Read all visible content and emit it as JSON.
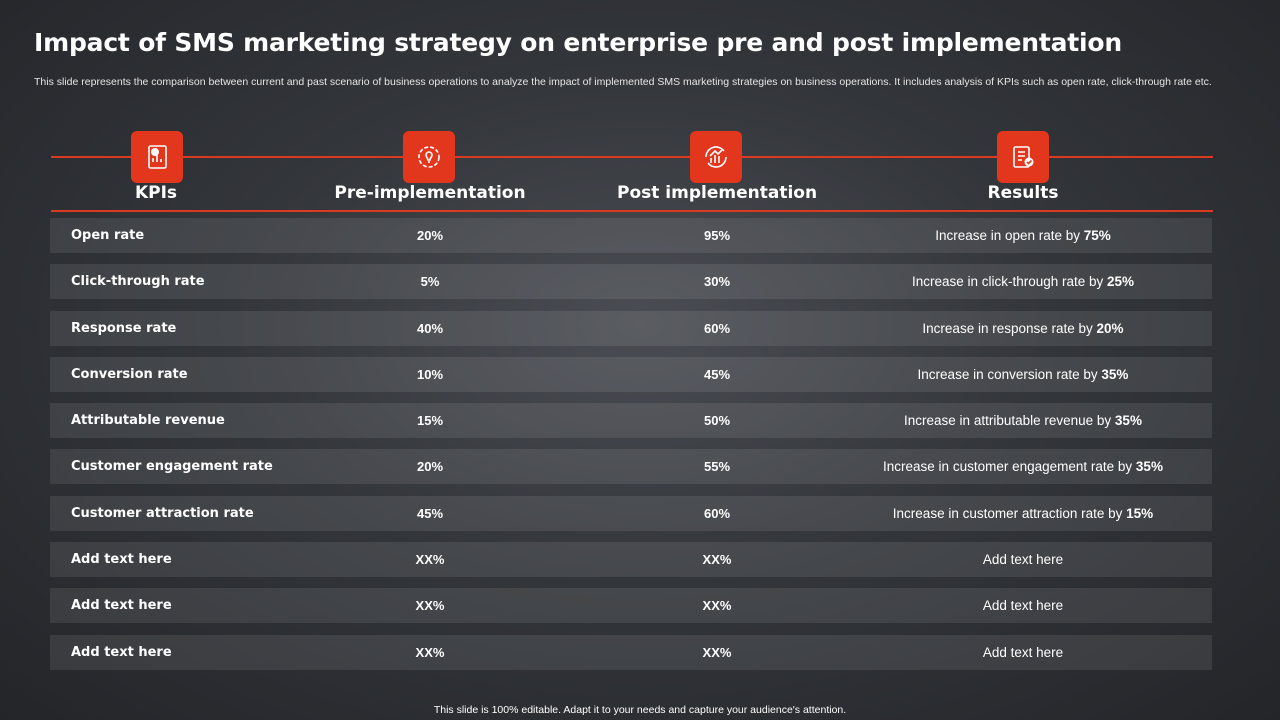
{
  "title": "Impact of SMS marketing strategy on enterprise pre and post implementation",
  "subtitle": "This slide represents the comparison between current and past scenario of business operations to analyze the impact of implemented SMS marketing strategies on business operations. It includes analysis of KPIs such as open rate, click-through rate etc.",
  "colors": {
    "accent": "#e2361d",
    "line": "#d93a21"
  },
  "columns": [
    {
      "label": "KPIs",
      "icon": "chart-report-icon"
    },
    {
      "label": "Pre-implementation",
      "icon": "gear-bulb-icon"
    },
    {
      "label": "Post implementation",
      "icon": "growth-chart-icon"
    },
    {
      "label": "Results",
      "icon": "checklist-search-icon"
    }
  ],
  "rows": [
    {
      "kpi": "Open rate",
      "pre": "20%",
      "post": "95%",
      "result_text": "Increase in open rate by ",
      "result_value": "75%"
    },
    {
      "kpi": "Click-through rate",
      "pre": "5%",
      "post": "30%",
      "result_text": "Increase in click-through rate by ",
      "result_value": "25%"
    },
    {
      "kpi": "Response rate",
      "pre": "40%",
      "post": "60%",
      "result_text": "Increase in response rate by ",
      "result_value": "20%"
    },
    {
      "kpi": "Conversion rate",
      "pre": "10%",
      "post": "45%",
      "result_text": "Increase in conversion rate by ",
      "result_value": "35%"
    },
    {
      "kpi": "Attributable revenue",
      "pre": "15%",
      "post": "50%",
      "result_text": "Increase in attributable revenue by ",
      "result_value": "35%"
    },
    {
      "kpi": "Customer engagement rate",
      "pre": "20%",
      "post": "55%",
      "result_text": "Increase in customer engagement rate by ",
      "result_value": "35%"
    },
    {
      "kpi": "Customer attraction rate",
      "pre": "45%",
      "post": "60%",
      "result_text": "Increase in customer attraction rate by ",
      "result_value": "15%"
    },
    {
      "kpi": "Add text here",
      "pre": "XX%",
      "post": "XX%",
      "result_text": "Add text here",
      "result_value": ""
    },
    {
      "kpi": "Add text here",
      "pre": "XX%",
      "post": "XX%",
      "result_text": "Add text here",
      "result_value": ""
    },
    {
      "kpi": "Add text here",
      "pre": "XX%",
      "post": "XX%",
      "result_text": "Add text here",
      "result_value": ""
    }
  ],
  "footer": "This slide is 100% editable.  Adapt it to your needs and capture your audience's attention."
}
